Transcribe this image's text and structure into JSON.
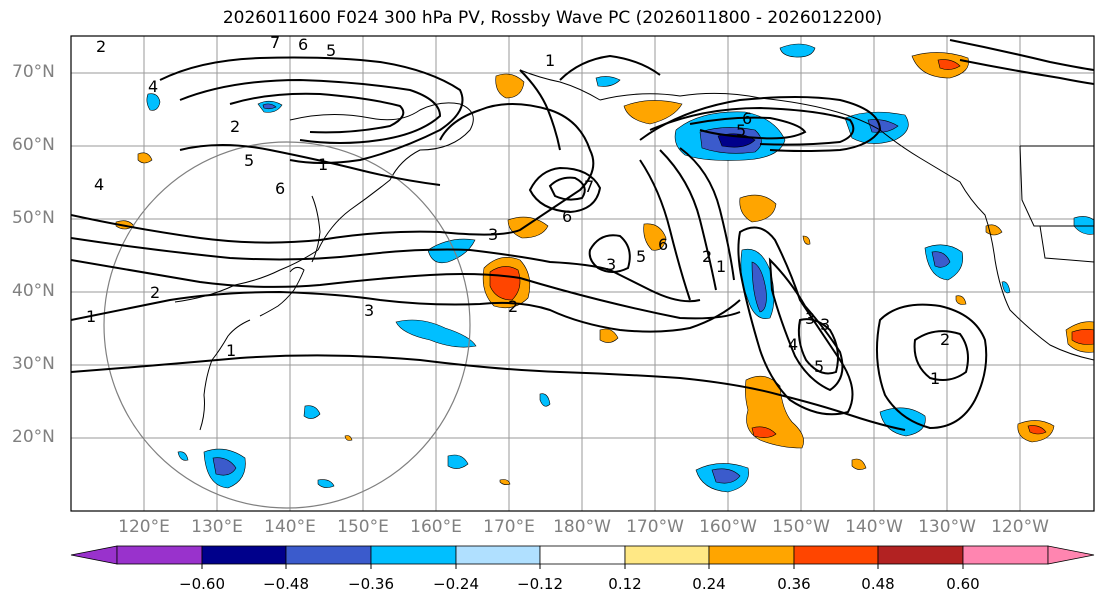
{
  "title": "2026011600 F024 300 hPa PV, Rossby Wave PC (2026011800 - 2026012200)",
  "lat_labels": [
    "70°N",
    "60°N",
    "50°N",
    "40°N",
    "30°N",
    "20°N"
  ],
  "lon_labels": [
    "120°E",
    "130°E",
    "140°E",
    "150°E",
    "160°E",
    "170°E",
    "180°W",
    "170°W",
    "160°W",
    "150°W",
    "140°W",
    "130°W",
    "120°W"
  ],
  "colorbar": {
    "ticks": [
      "−0.60",
      "−0.48",
      "−0.36",
      "−0.24",
      "−0.12",
      "0.12",
      "0.24",
      "0.36",
      "0.48",
      "0.60"
    ],
    "colors": [
      "#9932cc",
      "#00008b",
      "#3b5bcc",
      "#00bfff",
      "#b0e0ff",
      "#ffffff",
      "#ffe885",
      "#ffa500",
      "#ff4500",
      "#b22222",
      "#ff85b0"
    ]
  },
  "contour_labels": [
    "2",
    "7",
    "6",
    "5",
    "4",
    "1",
    "2",
    "5",
    "1",
    "6",
    "3",
    "7",
    "6",
    "6",
    "3",
    "5",
    "6",
    "2",
    "1",
    "5",
    "4",
    "3",
    "2",
    "1",
    "2",
    "1",
    "1",
    "2",
    "3",
    "4",
    "5",
    "3"
  ]
}
